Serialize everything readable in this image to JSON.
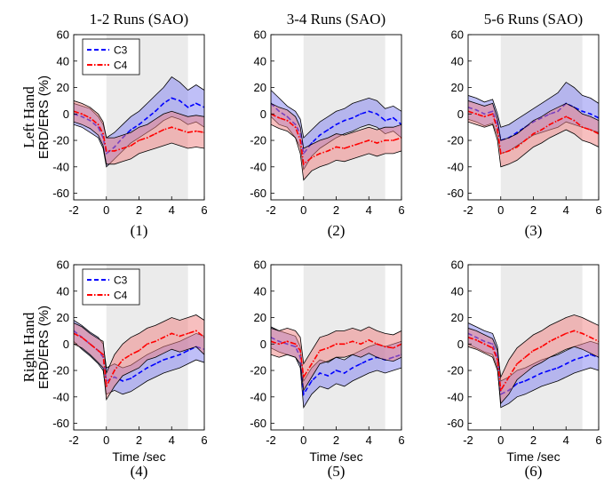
{
  "chart_data": [
    {
      "type": "line",
      "title": "1-2 Runs (SAO)",
      "caption": "(1)",
      "xlabel": "",
      "ylabel_row": "Left Hand",
      "ylabel": "ERD/ERS (%)",
      "show_legend": true,
      "xlim": [
        -2,
        6
      ],
      "ylim": [
        -65,
        60
      ],
      "x_ticks": [
        -2,
        0,
        2,
        4,
        6
      ],
      "y_ticks": [
        -60,
        -40,
        -20,
        0,
        20,
        40,
        60
      ],
      "shaded_region": [
        0,
        5
      ],
      "x": [
        -2,
        -1.5,
        -1,
        -0.5,
        -0.2,
        0,
        0.5,
        1,
        1.5,
        2,
        2.5,
        3,
        3.5,
        4,
        4.5,
        5,
        5.5,
        6
      ],
      "series": [
        {
          "name": "C3",
          "color": "#0000ff",
          "style": "dashed",
          "band_color": "#8080f0",
          "values": [
            0,
            -2,
            -5,
            -10,
            -18,
            -30,
            -25,
            -18,
            -12,
            -8,
            -3,
            2,
            8,
            12,
            10,
            5,
            8,
            5
          ],
          "upper": [
            8,
            6,
            4,
            -2,
            -8,
            -18,
            -14,
            -8,
            -2,
            2,
            8,
            14,
            20,
            28,
            24,
            18,
            22,
            18
          ],
          "lower": [
            -8,
            -10,
            -14,
            -18,
            -26,
            -40,
            -34,
            -28,
            -22,
            -18,
            -14,
            -10,
            -5,
            -2,
            -4,
            -8,
            -6,
            -10
          ]
        },
        {
          "name": "C4",
          "color": "#ff0000",
          "style": "dashdot",
          "band_color": "#f08080",
          "values": [
            2,
            0,
            -3,
            -8,
            -15,
            -28,
            -28,
            -26,
            -24,
            -20,
            -18,
            -15,
            -12,
            -10,
            -12,
            -14,
            -13,
            -14
          ],
          "upper": [
            10,
            8,
            5,
            0,
            -6,
            -18,
            -18,
            -16,
            -14,
            -10,
            -8,
            -4,
            0,
            2,
            0,
            -2,
            -1,
            -2
          ],
          "lower": [
            -6,
            -8,
            -11,
            -16,
            -24,
            -38,
            -38,
            -36,
            -34,
            -30,
            -28,
            -26,
            -24,
            -22,
            -24,
            -26,
            -25,
            -26
          ]
        }
      ]
    },
    {
      "type": "line",
      "title": "3-4 Runs (SAO)",
      "caption": "(2)",
      "xlabel": "",
      "ylabel_row": "",
      "ylabel": "",
      "show_legend": false,
      "xlim": [
        -2,
        6
      ],
      "ylim": [
        -65,
        60
      ],
      "x_ticks": [
        -2,
        0,
        2,
        4,
        6
      ],
      "y_ticks": [
        -60,
        -40,
        -20,
        0,
        20,
        40,
        60
      ],
      "shaded_region": [
        0,
        5
      ],
      "x": [
        -2,
        -1.5,
        -1,
        -0.5,
        -0.2,
        0,
        0.5,
        1,
        1.5,
        2,
        2.5,
        3,
        3.5,
        4,
        4.5,
        5,
        5.5,
        6
      ],
      "series": [
        {
          "name": "C3",
          "color": "#0000ff",
          "style": "dashed",
          "band_color": "#8080f0",
          "values": [
            8,
            2,
            -2,
            -8,
            -15,
            -30,
            -22,
            -16,
            -12,
            -8,
            -5,
            -3,
            0,
            2,
            0,
            -5,
            -3,
            -8
          ],
          "upper": [
            18,
            12,
            6,
            2,
            -4,
            -18,
            -12,
            -6,
            -2,
            2,
            4,
            8,
            10,
            12,
            10,
            4,
            6,
            2
          ],
          "lower": [
            -2,
            -8,
            -10,
            -18,
            -25,
            -42,
            -32,
            -26,
            -22,
            -18,
            -15,
            -13,
            -10,
            -8,
            -10,
            -15,
            -13,
            -18
          ]
        },
        {
          "name": "C4",
          "color": "#ff0000",
          "style": "dashdot",
          "band_color": "#f08080",
          "values": [
            0,
            -3,
            -5,
            -10,
            -20,
            -38,
            -33,
            -30,
            -28,
            -25,
            -26,
            -24,
            -22,
            -20,
            -22,
            -20,
            -20,
            -18
          ],
          "upper": [
            8,
            5,
            3,
            -2,
            -10,
            -26,
            -23,
            -20,
            -18,
            -15,
            -16,
            -14,
            -12,
            -10,
            -12,
            -10,
            -10,
            -8
          ],
          "lower": [
            -8,
            -11,
            -13,
            -18,
            -30,
            -50,
            -43,
            -40,
            -38,
            -35,
            -36,
            -34,
            -32,
            -30,
            -32,
            -30,
            -30,
            -28
          ]
        }
      ]
    },
    {
      "type": "line",
      "title": "5-6 Runs (SAO)",
      "caption": "(3)",
      "xlabel": "",
      "ylabel_row": "",
      "ylabel": "",
      "show_legend": false,
      "xlim": [
        -2,
        6
      ],
      "ylim": [
        -65,
        60
      ],
      "x_ticks": [
        -2,
        0,
        2,
        4,
        6
      ],
      "y_ticks": [
        -60,
        -40,
        -20,
        0,
        20,
        40,
        60
      ],
      "shaded_region": [
        0,
        5
      ],
      "x": [
        -2,
        -1.5,
        -1,
        -0.5,
        -0.2,
        0,
        0.5,
        1,
        1.5,
        2,
        2.5,
        3,
        3.5,
        4,
        4.5,
        5,
        5.5,
        6
      ],
      "series": [
        {
          "name": "C3",
          "color": "#0000ff",
          "style": "dashed",
          "band_color": "#8080f0",
          "values": [
            5,
            3,
            0,
            2,
            -8,
            -20,
            -18,
            -14,
            -10,
            -6,
            -3,
            0,
            2,
            8,
            5,
            2,
            0,
            -3
          ],
          "upper": [
            14,
            12,
            9,
            11,
            0,
            -10,
            -8,
            -4,
            0,
            4,
            8,
            12,
            16,
            24,
            20,
            14,
            12,
            8
          ],
          "lower": [
            -4,
            -6,
            -9,
            -7,
            -16,
            -30,
            -28,
            -24,
            -20,
            -16,
            -14,
            -12,
            -10,
            -6,
            -8,
            -10,
            -12,
            -14
          ]
        },
        {
          "name": "C4",
          "color": "#ff0000",
          "style": "dashdot",
          "band_color": "#f08080",
          "values": [
            2,
            0,
            -2,
            0,
            -12,
            -30,
            -28,
            -25,
            -20,
            -15,
            -12,
            -8,
            -5,
            -2,
            -5,
            -10,
            -12,
            -15
          ],
          "upper": [
            10,
            8,
            6,
            8,
            -4,
            -20,
            -18,
            -15,
            -10,
            -5,
            -2,
            2,
            5,
            8,
            5,
            0,
            -2,
            -5
          ],
          "lower": [
            -6,
            -8,
            -10,
            -8,
            -20,
            -40,
            -38,
            -35,
            -30,
            -25,
            -22,
            -18,
            -15,
            -12,
            -15,
            -20,
            -22,
            -25
          ]
        }
      ]
    },
    {
      "type": "line",
      "title": "",
      "caption": "(4)",
      "xlabel": "Time /sec",
      "ylabel_row": "Right Hand",
      "ylabel": "ERD/ERS (%)",
      "show_legend": true,
      "xlim": [
        -2,
        6
      ],
      "ylim": [
        -65,
        60
      ],
      "x_ticks": [
        -2,
        0,
        2,
        4,
        6
      ],
      "y_ticks": [
        -60,
        -40,
        -20,
        0,
        20,
        40,
        60
      ],
      "shaded_region": [
        0,
        5
      ],
      "x": [
        -2,
        -1.5,
        -1,
        -0.5,
        -0.2,
        0,
        0.5,
        1,
        1.5,
        2,
        2.5,
        3,
        3.5,
        4,
        4.5,
        5,
        5.5,
        6
      ],
      "series": [
        {
          "name": "C3",
          "color": "#0000ff",
          "style": "dashed",
          "band_color": "#8080f0",
          "values": [
            10,
            5,
            0,
            -5,
            -10,
            -28,
            -25,
            -28,
            -26,
            -22,
            -18,
            -15,
            -12,
            -10,
            -8,
            -5,
            -2,
            -4
          ],
          "upper": [
            18,
            14,
            9,
            5,
            0,
            -18,
            -15,
            -18,
            -16,
            -12,
            -8,
            -5,
            -2,
            0,
            2,
            5,
            8,
            6
          ],
          "lower": [
            2,
            -4,
            -9,
            -15,
            -20,
            -38,
            -35,
            -38,
            -36,
            -32,
            -28,
            -25,
            -22,
            -20,
            -18,
            -15,
            -12,
            -14
          ]
        },
        {
          "name": "C4",
          "color": "#ff0000",
          "style": "dashdot",
          "band_color": "#f08080",
          "values": [
            8,
            5,
            0,
            -5,
            -8,
            -32,
            -20,
            -12,
            -8,
            -5,
            0,
            2,
            5,
            8,
            6,
            8,
            10,
            5
          ],
          "upper": [
            16,
            13,
            8,
            4,
            2,
            -22,
            -8,
            0,
            5,
            8,
            12,
            14,
            17,
            20,
            18,
            20,
            22,
            18
          ],
          "lower": [
            0,
            -3,
            -8,
            -14,
            -18,
            -42,
            -32,
            -24,
            -21,
            -18,
            -12,
            -10,
            -7,
            -4,
            -6,
            -4,
            -2,
            -8
          ]
        }
      ]
    },
    {
      "type": "line",
      "title": "",
      "caption": "(5)",
      "xlabel": "Time /sec",
      "ylabel_row": "",
      "ylabel": "",
      "show_legend": false,
      "xlim": [
        -2,
        6
      ],
      "ylim": [
        -65,
        60
      ],
      "x_ticks": [
        -2,
        0,
        2,
        4,
        6
      ],
      "y_ticks": [
        -60,
        -40,
        -20,
        0,
        20,
        40,
        60
      ],
      "shaded_region": [
        0,
        5
      ],
      "x": [
        -2,
        -1.5,
        -1,
        -0.5,
        -0.2,
        0,
        0.5,
        1,
        1.5,
        2,
        2.5,
        3,
        3.5,
        4,
        4.5,
        5,
        5.5,
        6
      ],
      "series": [
        {
          "name": "C3",
          "color": "#0000ff",
          "style": "dashed",
          "band_color": "#8080f0",
          "values": [
            5,
            2,
            0,
            -2,
            -10,
            -38,
            -28,
            -22,
            -24,
            -20,
            -22,
            -18,
            -15,
            -12,
            -10,
            -12,
            -10,
            -8
          ],
          "upper": [
            13,
            10,
            8,
            6,
            -2,
            -28,
            -18,
            -12,
            -14,
            -10,
            -12,
            -8,
            -5,
            -2,
            0,
            -2,
            0,
            2
          ],
          "lower": [
            -3,
            -6,
            -8,
            -10,
            -18,
            -48,
            -38,
            -32,
            -34,
            -30,
            -32,
            -28,
            -25,
            -22,
            -20,
            -22,
            -20,
            -18
          ]
        },
        {
          "name": "C4",
          "color": "#ff0000",
          "style": "dashdot",
          "band_color": "#f08080",
          "values": [
            2,
            0,
            2,
            0,
            -5,
            -25,
            -15,
            -5,
            -3,
            0,
            0,
            2,
            0,
            3,
            0,
            -2,
            -3,
            0
          ],
          "upper": [
            12,
            10,
            12,
            10,
            5,
            -15,
            -5,
            5,
            7,
            10,
            10,
            12,
            10,
            13,
            10,
            8,
            7,
            10
          ],
          "lower": [
            -8,
            -10,
            -8,
            -10,
            -15,
            -35,
            -25,
            -15,
            -13,
            -10,
            -10,
            -8,
            -10,
            -7,
            -10,
            -12,
            -13,
            -10
          ]
        }
      ]
    },
    {
      "type": "line",
      "title": "",
      "caption": "(6)",
      "xlabel": "Time /sec",
      "ylabel_row": "",
      "ylabel": "",
      "show_legend": false,
      "xlim": [
        -2,
        6
      ],
      "ylim": [
        -65,
        60
      ],
      "x_ticks": [
        -2,
        0,
        2,
        4,
        6
      ],
      "y_ticks": [
        -60,
        -40,
        -20,
        0,
        20,
        40,
        60
      ],
      "shaded_region": [
        0,
        5
      ],
      "x": [
        -2,
        -1.5,
        -1,
        -0.5,
        -0.2,
        0,
        0.5,
        1,
        1.5,
        2,
        2.5,
        3,
        3.5,
        4,
        4.5,
        5,
        5.5,
        6
      ],
      "series": [
        {
          "name": "C3",
          "color": "#0000ff",
          "style": "dashed",
          "band_color": "#8080f0",
          "values": [
            8,
            5,
            2,
            0,
            -10,
            -38,
            -35,
            -30,
            -28,
            -25,
            -22,
            -20,
            -18,
            -15,
            -12,
            -10,
            -8,
            -10
          ],
          "upper": [
            16,
            13,
            10,
            8,
            -2,
            -28,
            -25,
            -20,
            -18,
            -15,
            -12,
            -10,
            -8,
            -5,
            -2,
            0,
            2,
            0
          ],
          "lower": [
            0,
            -3,
            -6,
            -8,
            -18,
            -48,
            -45,
            -40,
            -38,
            -35,
            -32,
            -30,
            -28,
            -25,
            -22,
            -20,
            -18,
            -20
          ]
        },
        {
          "name": "C4",
          "color": "#ff0000",
          "style": "dashdot",
          "band_color": "#f08080",
          "values": [
            5,
            3,
            0,
            -3,
            -12,
            -35,
            -25,
            -15,
            -10,
            -5,
            -2,
            2,
            5,
            8,
            10,
            8,
            5,
            2
          ],
          "upper": [
            12,
            10,
            7,
            4,
            -5,
            -25,
            -12,
            -3,
            2,
            7,
            10,
            14,
            17,
            20,
            22,
            20,
            17,
            14
          ],
          "lower": [
            -2,
            -4,
            -7,
            -10,
            -20,
            -45,
            -38,
            -27,
            -22,
            -17,
            -14,
            -10,
            -7,
            -4,
            -2,
            -4,
            -7,
            -10
          ]
        }
      ]
    }
  ]
}
